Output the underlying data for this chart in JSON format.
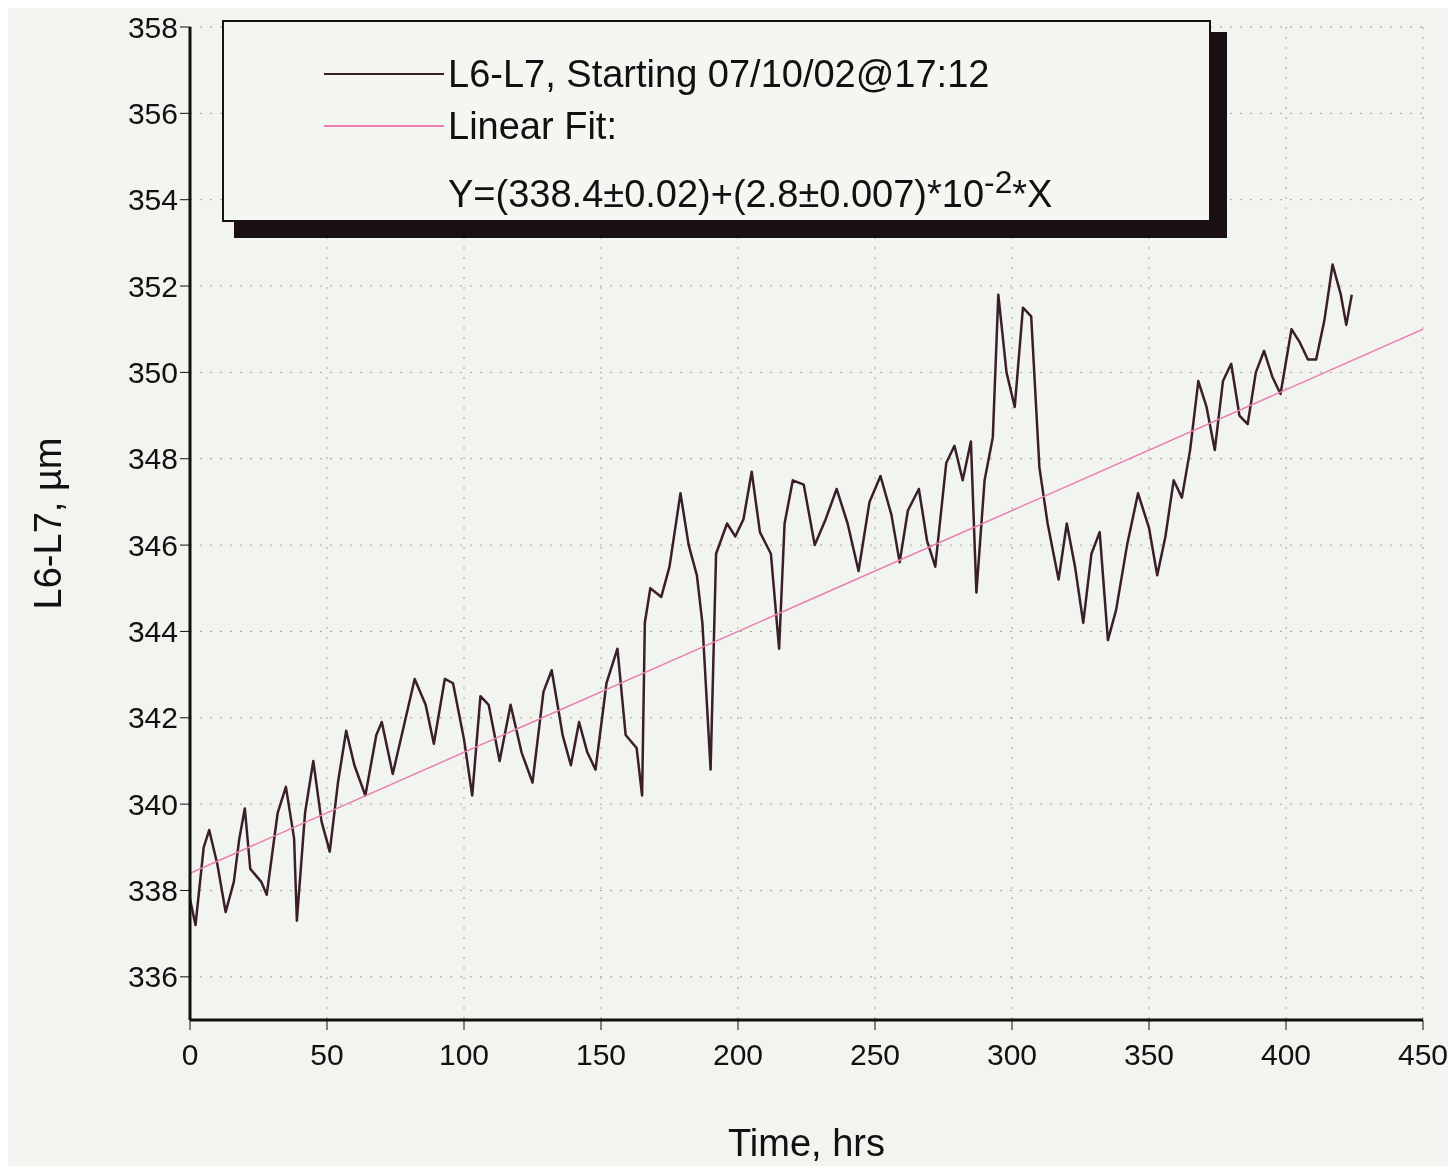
{
  "chart_data": {
    "type": "line",
    "xlabel": "Time, hrs",
    "ylabel": "L6-L7, µm",
    "xlim": [
      0,
      450
    ],
    "xticks": [
      0,
      50,
      100,
      150,
      200,
      250,
      300,
      350,
      400,
      450
    ],
    "ylim": [
      335,
      358
    ],
    "yticks": [
      336,
      338,
      340,
      342,
      344,
      346,
      348,
      350,
      352,
      354,
      356,
      358
    ],
    "grid": true,
    "legend": "top left",
    "marker": "none",
    "line_style": "solid",
    "annotations": [
      "Y=(338.4±0.02)+(2.8±0.007)*10$^{-2}$*X"
    ],
    "series": [
      {
        "name": "L6-L7, Starting 07/10/02@17:12",
        "color": "#3a1f2a",
        "x": [
          0,
          2,
          5,
          7,
          10,
          13,
          16,
          18,
          20,
          22,
          26,
          28,
          32,
          35,
          38,
          39,
          42,
          45,
          48,
          51,
          54,
          57,
          60,
          64,
          68,
          70,
          74,
          78,
          82,
          86,
          89,
          93,
          96,
          100,
          103,
          106,
          109,
          113,
          117,
          121,
          125,
          129,
          132,
          136,
          139,
          142,
          145,
          148,
          152,
          156,
          159,
          163,
          165,
          166,
          168,
          172,
          175,
          179,
          182,
          185,
          187,
          190,
          192,
          196,
          199,
          202,
          205,
          208,
          212,
          215,
          217,
          220,
          224,
          228,
          232,
          236,
          240,
          244,
          248,
          252,
          256,
          259,
          262,
          266,
          269,
          272,
          276,
          279,
          282,
          285,
          287,
          290,
          293,
          295,
          298,
          301,
          304,
          307,
          310,
          313,
          317,
          320,
          323,
          326,
          329,
          332,
          335,
          338,
          342,
          346,
          350,
          353,
          356,
          359,
          362,
          365,
          368,
          371,
          374,
          377,
          380,
          383,
          386,
          389,
          392,
          395,
          398,
          402,
          405,
          408,
          411,
          414,
          417,
          420,
          422,
          424
        ],
        "values": [
          337.8,
          337.2,
          339,
          339.4,
          338.6,
          337.5,
          338.2,
          339.2,
          339.9,
          338.5,
          338.2,
          337.9,
          339.8,
          340.4,
          339.2,
          337.3,
          339.8,
          341,
          339.6,
          338.9,
          340.5,
          341.7,
          340.9,
          340.2,
          341.6,
          341.9,
          340.7,
          341.8,
          342.9,
          342.3,
          341.4,
          342.9,
          342.8,
          341.5,
          340.2,
          342.5,
          342.3,
          341,
          342.3,
          341.2,
          340.5,
          342.6,
          343.1,
          341.6,
          340.9,
          341.9,
          341.2,
          340.8,
          342.8,
          343.6,
          341.6,
          341.3,
          340.2,
          344.2,
          345,
          344.8,
          345.5,
          347.2,
          346,
          345.3,
          344.2,
          340.8,
          345.8,
          346.5,
          346.2,
          346.6,
          347.7,
          346.3,
          345.8,
          343.6,
          346.5,
          347.5,
          347.4,
          346,
          346.6,
          347.3,
          346.5,
          345.4,
          347,
          347.6,
          346.7,
          345.6,
          346.8,
          347.3,
          346.1,
          345.5,
          347.9,
          348.3,
          347.5,
          348.4,
          344.9,
          347.5,
          348.5,
          351.8,
          350,
          349.2,
          351.5,
          351.3,
          347.8,
          346.5,
          345.2,
          346.5,
          345.5,
          344.2,
          345.8,
          346.3,
          343.8,
          344.5,
          346,
          347.2,
          346.4,
          345.3,
          346.2,
          347.5,
          347.1,
          348.2,
          349.8,
          349.2,
          348.2,
          349.8,
          350.2,
          349,
          348.8,
          350,
          350.5,
          349.9,
          349.5,
          351,
          350.7,
          350.3,
          350.3,
          351.2,
          352.5,
          351.8,
          351.1,
          351.8
        ]
      },
      {
        "name": "Linear Fit:",
        "color": "#e87fb0",
        "x": [
          0,
          450
        ],
        "values": [
          338.4,
          351.0
        ]
      }
    ]
  }
}
